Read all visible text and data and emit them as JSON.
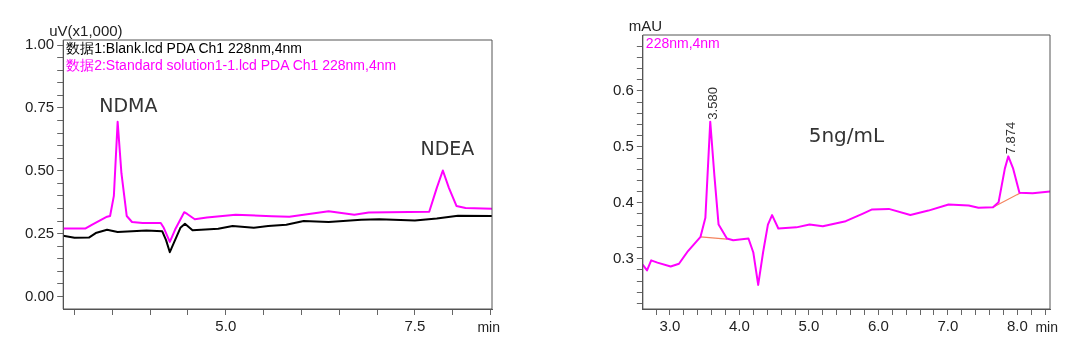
{
  "chart_data": [
    {
      "type": "line",
      "ylabel": "uV(x1,000)",
      "xlabel": "min",
      "legend": "top left",
      "grid": false,
      "marker": "none",
      "line_style": "solid",
      "xlim": [
        2.85,
        8.52
      ],
      "ylim": [
        -0.05,
        1.02
      ],
      "xticks": [
        {
          "value": 3,
          "label": null
        },
        {
          "value": 3.5,
          "label": null
        },
        {
          "value": 4,
          "label": null
        },
        {
          "value": 4.5,
          "label": null
        },
        {
          "value": 5,
          "label": "5.0"
        },
        {
          "value": 5.5,
          "label": null
        },
        {
          "value": 6,
          "label": null
        },
        {
          "value": 6.5,
          "label": null
        },
        {
          "value": 7,
          "label": null
        },
        7.5,
        {
          "value": 8,
          "label": null
        },
        {
          "value": 8.5,
          "label": null
        }
      ],
      "yticks": [
        {
          "value": 0,
          "label": "0.00"
        },
        {
          "value": 0.05,
          "label": null
        },
        {
          "value": 0.1,
          "label": null
        },
        {
          "value": 0.15,
          "label": null
        },
        {
          "value": 0.2,
          "label": null
        },
        0.25,
        {
          "value": 0.3,
          "label": null
        },
        {
          "value": 0.35,
          "label": null
        },
        {
          "value": 0.4,
          "label": null
        },
        {
          "value": 0.45,
          "label": null
        },
        {
          "value": 0.5,
          "label": "0.50"
        },
        {
          "value": 0.55,
          "label": null
        },
        {
          "value": 0.6,
          "label": null
        },
        {
          "value": 0.65,
          "label": null
        },
        {
          "value": 0.7,
          "label": null
        },
        0.75,
        {
          "value": 0.8,
          "label": null
        },
        {
          "value": 0.85,
          "label": null
        },
        {
          "value": 0.9,
          "label": null
        },
        {
          "value": 0.95,
          "label": null
        },
        {
          "value": 1,
          "label": "1.00"
        }
      ],
      "series": [
        {
          "name": "数据1:Blank.lcd PDA Ch1 228nm,4nm",
          "color": "#000000",
          "x": [
            2.85,
            3.0,
            3.19,
            3.28,
            3.43,
            3.57,
            3.95,
            4.16,
            4.21,
            4.26,
            4.3,
            4.4,
            4.46,
            4.56,
            4.9,
            5.09,
            5.37,
            5.56,
            5.8,
            6.03,
            6.36,
            6.79,
            7.03,
            7.5,
            7.79,
            8.07,
            8.52
          ],
          "values": [
            0.241,
            0.233,
            0.234,
            0.252,
            0.265,
            0.256,
            0.262,
            0.259,
            0.224,
            0.176,
            0.204,
            0.273,
            0.289,
            0.263,
            0.269,
            0.28,
            0.273,
            0.28,
            0.285,
            0.3,
            0.296,
            0.305,
            0.307,
            0.302,
            0.31,
            0.321,
            0.32
          ]
        },
        {
          "name": "数据2:Standard solution1-1.lcd PDA Ch1 228nm,4nm",
          "color": "#ff00ff",
          "x": [
            2.85,
            3.14,
            3.24,
            3.43,
            3.47,
            3.52,
            3.57,
            3.62,
            3.69,
            3.76,
            3.9,
            4.14,
            4.18,
            4.26,
            4.33,
            4.45,
            4.49,
            4.59,
            4.75,
            5.13,
            5.61,
            5.84,
            6.36,
            6.7,
            6.89,
            7.69,
            7.79,
            7.87,
            7.95,
            8.05,
            8.17,
            8.52
          ],
          "values": [
            0.27,
            0.27,
            0.287,
            0.317,
            0.32,
            0.4,
            0.695,
            0.49,
            0.32,
            0.296,
            0.292,
            0.292,
            0.273,
            0.217,
            0.266,
            0.335,
            0.328,
            0.307,
            0.314,
            0.325,
            0.319,
            0.317,
            0.339,
            0.325,
            0.334,
            0.337,
            0.432,
            0.501,
            0.432,
            0.36,
            0.352,
            0.349
          ]
        }
      ],
      "annotations": [
        "NDMA",
        "NDEA"
      ]
    },
    {
      "type": "line",
      "ylabel": "mAU",
      "xlabel": "min",
      "legend": "top left",
      "grid": false,
      "marker": "none",
      "line_style": "solid",
      "xlim": [
        2.61,
        8.47
      ],
      "ylim": [
        0.21,
        0.7
      ],
      "xticks": [
        {
          "value": 2.8,
          "label": null
        },
        {
          "value": 3,
          "label": "3.0"
        },
        {
          "value": 3.2,
          "label": null
        },
        {
          "value": 3.4,
          "label": null
        },
        {
          "value": 3.6,
          "label": null
        },
        {
          "value": 3.8,
          "label": null
        },
        {
          "value": 4,
          "label": "4.0"
        },
        {
          "value": 4.2,
          "label": null
        },
        {
          "value": 4.4,
          "label": null
        },
        {
          "value": 4.6,
          "label": null
        },
        {
          "value": 4.8,
          "label": null
        },
        {
          "value": 5,
          "label": "5.0"
        },
        {
          "value": 5.2,
          "label": null
        },
        {
          "value": 5.4,
          "label": null
        },
        {
          "value": 5.6,
          "label": null
        },
        {
          "value": 5.8,
          "label": null
        },
        {
          "value": 6,
          "label": "6.0"
        },
        {
          "value": 6.2,
          "label": null
        },
        {
          "value": 6.4,
          "label": null
        },
        {
          "value": 6.6,
          "label": null
        },
        {
          "value": 6.8,
          "label": null
        },
        {
          "value": 7,
          "label": "7.0"
        },
        {
          "value": 7.2,
          "label": null
        },
        {
          "value": 7.4,
          "label": null
        },
        {
          "value": 7.6,
          "label": null
        },
        {
          "value": 7.8,
          "label": null
        },
        {
          "value": 8,
          "label": "8.0"
        },
        {
          "value": 8.2,
          "label": null
        },
        {
          "value": 8.4,
          "label": null
        }
      ],
      "yticks": [
        {
          "value": 0.22,
          "label": null
        },
        {
          "value": 0.24,
          "label": null
        },
        {
          "value": 0.26,
          "label": null
        },
        {
          "value": 0.28,
          "label": null
        },
        0.3,
        {
          "value": 0.32,
          "label": null
        },
        {
          "value": 0.34,
          "label": null
        },
        {
          "value": 0.36,
          "label": null
        },
        {
          "value": 0.38,
          "label": null
        },
        0.4,
        {
          "value": 0.42,
          "label": null
        },
        {
          "value": 0.44,
          "label": null
        },
        {
          "value": 0.46,
          "label": null
        },
        {
          "value": 0.48,
          "label": null
        },
        0.5,
        {
          "value": 0.52,
          "label": null
        },
        {
          "value": 0.54,
          "label": null
        },
        {
          "value": 0.56,
          "label": null
        },
        {
          "value": 0.58,
          "label": null
        },
        0.6,
        {
          "value": 0.62,
          "label": null
        },
        {
          "value": 0.64,
          "label": null
        },
        {
          "value": 0.66,
          "label": null
        },
        {
          "value": 0.68,
          "label": null
        }
      ],
      "series": [
        {
          "name": "228nm,4nm",
          "color": "#ff00ff",
          "x": [
            2.61,
            2.67,
            2.73,
            2.82,
            3.01,
            3.13,
            3.25,
            3.44,
            3.51,
            3.58,
            3.64,
            3.7,
            3.82,
            3.91,
            4.13,
            4.2,
            4.27,
            4.34,
            4.41,
            4.47,
            4.56,
            4.82,
            5.01,
            5.2,
            5.53,
            5.77,
            5.91,
            6.15,
            6.46,
            6.72,
            7.01,
            7.3,
            7.44,
            7.65,
            7.73,
            7.82,
            7.87,
            7.94,
            8.03,
            8.22,
            8.47
          ],
          "values": [
            0.289,
            0.279,
            0.297,
            0.293,
            0.286,
            0.291,
            0.312,
            0.339,
            0.373,
            0.545,
            0.448,
            0.361,
            0.336,
            0.333,
            0.336,
            0.311,
            0.253,
            0.311,
            0.361,
            0.378,
            0.354,
            0.356,
            0.361,
            0.358,
            0.367,
            0.38,
            0.388,
            0.389,
            0.378,
            0.386,
            0.397,
            0.395,
            0.391,
            0.392,
            0.401,
            0.461,
            0.483,
            0.461,
            0.418,
            0.417,
            0.42
          ]
        },
        {
          "color": "#f4845f",
          "x": [
            3.44,
            3.82
          ],
          "values": [
            0.339,
            0.335
          ]
        },
        {
          "color": "#f4845f",
          "x": [
            7.65,
            8.05
          ],
          "values": [
            0.392,
            0.418
          ]
        }
      ],
      "annotations": [
        {
          "text": "3.580",
          "x": 3.58,
          "y": 0.545
        },
        {
          "text": "7.874",
          "x": 7.874,
          "y": 0.483
        },
        "5ng/mL"
      ]
    }
  ]
}
